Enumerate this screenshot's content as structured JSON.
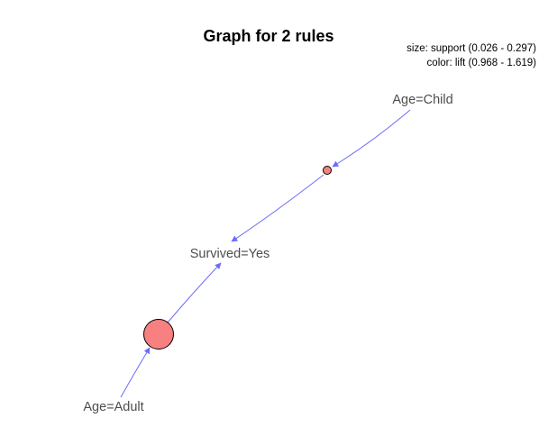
{
  "title": "Graph for 2 rules",
  "legend": {
    "size_line": "size: support (0.026 - 0.297)",
    "color_line": "color: lift (0.968 - 1.619)"
  },
  "colors": {
    "edge": "#6b6bff",
    "rule_fill": "#f98080",
    "rule_stroke": "#000000",
    "label": "#4d4d4d"
  },
  "item_nodes": [
    {
      "id": "child",
      "label": "Age=Child"
    },
    {
      "id": "survived",
      "label": "Survived=Yes"
    },
    {
      "id": "adult",
      "label": "Age=Adult"
    }
  ],
  "rules": [
    {
      "id": "rule1",
      "lhs": "child",
      "rhs": "survived",
      "support": 0.026,
      "lift": 1.619
    },
    {
      "id": "rule2",
      "lhs": "adult",
      "rhs": "survived",
      "support": 0.297,
      "lift": 0.968
    }
  ]
}
